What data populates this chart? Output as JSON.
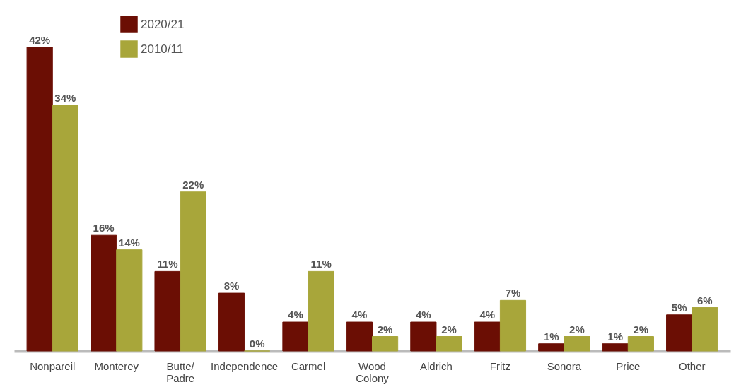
{
  "chart_data": {
    "type": "bar",
    "categories": [
      "Nonpareil",
      "Monterey",
      "Butte/Padre",
      "Independence",
      "Carmel",
      "Wood Colony",
      "Aldrich",
      "Fritz",
      "Sonora",
      "Price",
      "Other"
    ],
    "series": [
      {
        "name": "2020/21",
        "color": "#6b0e04",
        "values": [
          42,
          16,
          11,
          8,
          4,
          4,
          4,
          4,
          1,
          1,
          5
        ],
        "value_labels": [
          "42%",
          "16%",
          "11%",
          "8%",
          "4%",
          "4%",
          "4%",
          "4%",
          "1%",
          "1%",
          "5%"
        ]
      },
      {
        "name": "2010/11",
        "color": "#a8a63a",
        "values": [
          34,
          14,
          22,
          0,
          11,
          2,
          2,
          7,
          2,
          2,
          6
        ],
        "value_labels": [
          "34%",
          "14%",
          "22%",
          "0%",
          "11%",
          "2%",
          "2%",
          "7%",
          "2%",
          "2%",
          "6%"
        ]
      }
    ],
    "legend": "top left",
    "grid": false
  }
}
